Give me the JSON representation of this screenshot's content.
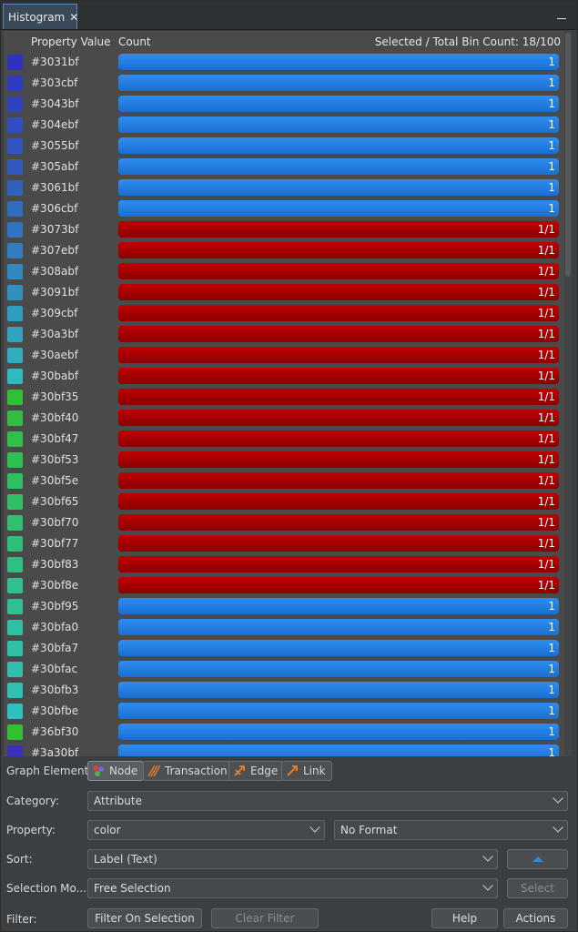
{
  "window": {
    "tab_title": "Histogram",
    "tab_close_glyph": "✕"
  },
  "header": {
    "property_value": "Property Value",
    "count": "Count",
    "selected_total": "Selected / Total Bin Count: 18/100"
  },
  "colors": {
    "selected_bar": "#b00000",
    "unselected_bar": "#2680e4"
  },
  "rows": [
    {
      "label": "#3031bf",
      "color": "#3031bf",
      "value": "1",
      "selected": false
    },
    {
      "label": "#303cbf",
      "color": "#303cbf",
      "value": "1",
      "selected": false
    },
    {
      "label": "#3043bf",
      "color": "#3043bf",
      "value": "1",
      "selected": false
    },
    {
      "label": "#304ebf",
      "color": "#304ebf",
      "value": "1",
      "selected": false
    },
    {
      "label": "#3055bf",
      "color": "#3055bf",
      "value": "1",
      "selected": false
    },
    {
      "label": "#305abf",
      "color": "#305abf",
      "value": "1",
      "selected": false
    },
    {
      "label": "#3061bf",
      "color": "#3061bf",
      "value": "1",
      "selected": false
    },
    {
      "label": "#306cbf",
      "color": "#306cbf",
      "value": "1",
      "selected": false
    },
    {
      "label": "#3073bf",
      "color": "#3073bf",
      "value": "1/1",
      "selected": true
    },
    {
      "label": "#307ebf",
      "color": "#307ebf",
      "value": "1/1",
      "selected": true
    },
    {
      "label": "#308abf",
      "color": "#308abf",
      "value": "1/1",
      "selected": true
    },
    {
      "label": "#3091bf",
      "color": "#3091bf",
      "value": "1/1",
      "selected": true
    },
    {
      "label": "#309cbf",
      "color": "#309cbf",
      "value": "1/1",
      "selected": true
    },
    {
      "label": "#30a3bf",
      "color": "#30a3bf",
      "value": "1/1",
      "selected": true
    },
    {
      "label": "#30aebf",
      "color": "#30aebf",
      "value": "1/1",
      "selected": true
    },
    {
      "label": "#30babf",
      "color": "#30babf",
      "value": "1/1",
      "selected": true
    },
    {
      "label": "#30bf35",
      "color": "#30bf35",
      "value": "1/1",
      "selected": true
    },
    {
      "label": "#30bf40",
      "color": "#30bf40",
      "value": "1/1",
      "selected": true
    },
    {
      "label": "#30bf47",
      "color": "#30bf47",
      "value": "1/1",
      "selected": true
    },
    {
      "label": "#30bf53",
      "color": "#30bf53",
      "value": "1/1",
      "selected": true
    },
    {
      "label": "#30bf5e",
      "color": "#30bf5e",
      "value": "1/1",
      "selected": true
    },
    {
      "label": "#30bf65",
      "color": "#30bf65",
      "value": "1/1",
      "selected": true
    },
    {
      "label": "#30bf70",
      "color": "#30bf70",
      "value": "1/1",
      "selected": true
    },
    {
      "label": "#30bf77",
      "color": "#30bf77",
      "value": "1/1",
      "selected": true
    },
    {
      "label": "#30bf83",
      "color": "#30bf83",
      "value": "1/1",
      "selected": true
    },
    {
      "label": "#30bf8e",
      "color": "#30bf8e",
      "value": "1/1",
      "selected": true
    },
    {
      "label": "#30bf95",
      "color": "#30bf95",
      "value": "1",
      "selected": false
    },
    {
      "label": "#30bfa0",
      "color": "#30bfa0",
      "value": "1",
      "selected": false
    },
    {
      "label": "#30bfa7",
      "color": "#30bfa7",
      "value": "1",
      "selected": false
    },
    {
      "label": "#30bfac",
      "color": "#30bfac",
      "value": "1",
      "selected": false
    },
    {
      "label": "#30bfb3",
      "color": "#30bfb3",
      "value": "1",
      "selected": false
    },
    {
      "label": "#30bfbe",
      "color": "#30bfbe",
      "value": "1",
      "selected": false
    },
    {
      "label": "#36bf30",
      "color": "#36bf30",
      "value": "1",
      "selected": false
    },
    {
      "label": "#3a30bf",
      "color": "#3a30bf",
      "value": "1",
      "selected": false
    }
  ],
  "controls": {
    "graph_element_label": "Graph Element:",
    "elements": [
      {
        "label": "Node",
        "icon": "node-icon",
        "active": true
      },
      {
        "label": "Transaction",
        "icon": "transaction-icon",
        "active": false
      },
      {
        "label": "Edge",
        "icon": "edge-icon",
        "active": false
      },
      {
        "label": "Link",
        "icon": "link-icon",
        "active": false
      }
    ],
    "category_label": "Category:",
    "category_value": "Attribute",
    "property_label": "Property:",
    "property_value": "color",
    "format_value": "No Format",
    "sort_label": "Sort:",
    "sort_value": "Label (Text)",
    "selection_mode_label": "Selection Mo...",
    "selection_mode_value": "Free Selection",
    "select_button": "Select",
    "filter_label": "Filter:",
    "filter_on_selection": "Filter On Selection",
    "clear_filter": "Clear Filter",
    "help": "Help",
    "actions": "Actions"
  }
}
